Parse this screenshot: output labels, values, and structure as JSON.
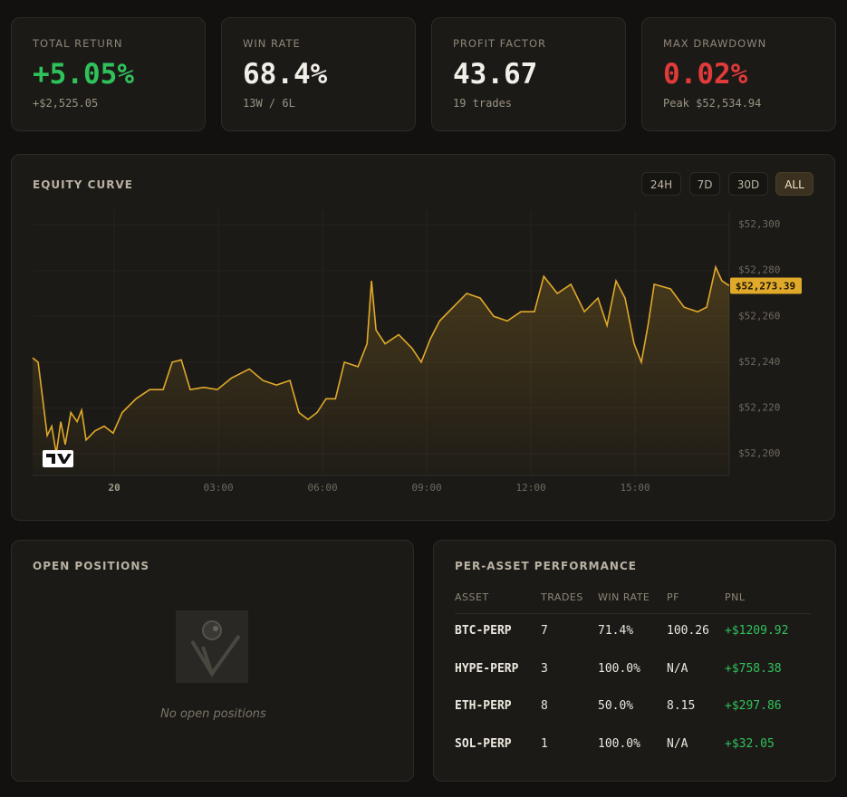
{
  "stats": [
    {
      "label": "TOTAL RETURN",
      "value": "+5.05%",
      "sub": "+$2,525.05",
      "color": "#2fc25b"
    },
    {
      "label": "WIN RATE",
      "value": "68.4%",
      "sub": "13W / 6L",
      "color": "#f2efe8"
    },
    {
      "label": "PROFIT FACTOR",
      "value": "43.67",
      "sub": "19 trades",
      "color": "#f2efe8"
    },
    {
      "label": "MAX DRAWDOWN",
      "value": "0.02%",
      "sub": "Peak $52,534.94",
      "color": "#e03a3a"
    }
  ],
  "equity_chart": {
    "title": "EQUITY CURVE",
    "ranges": [
      "24H",
      "7D",
      "30D",
      "ALL"
    ],
    "active_range": 3,
    "type": "line",
    "x": [
      -2.35,
      -2.19,
      -2.06,
      -1.93,
      -1.8,
      -1.67,
      -1.54,
      -1.41,
      -1.25,
      -1.07,
      -0.94,
      -0.81,
      -0.55,
      -0.29,
      -0.03,
      0.23,
      0.63,
      1.02,
      1.41,
      1.67,
      1.93,
      2.19,
      2.58,
      2.97,
      3.37,
      3.89,
      4.28,
      4.67,
      5.06,
      5.32,
      5.58,
      5.84,
      6.1,
      6.37,
      6.63,
      7.02,
      7.28,
      7.41,
      7.54,
      7.8,
      8.19,
      8.58,
      8.84,
      9.1,
      9.37,
      9.76,
      10.15,
      10.54,
      10.93,
      11.32,
      11.71,
      12.1,
      12.37,
      12.76,
      13.15,
      13.54,
      13.93,
      14.19,
      14.45,
      14.71,
      14.97,
      15.18,
      15.37,
      15.55,
      16.02,
      16.41,
      16.8,
      17.06,
      17.32,
      17.5,
      17.71
    ],
    "series": [
      {
        "color": "#e0a92a",
        "values": [
          52241.9,
          52240,
          52224,
          52208,
          52212,
          52200,
          52214,
          52204,
          52218,
          52214,
          52219,
          52206,
          52210,
          52212,
          52209,
          52218,
          52224,
          52228,
          52228,
          52240,
          52241,
          52228,
          52229,
          52228,
          52233,
          52237,
          52232,
          52230,
          52232,
          52218,
          52215,
          52218,
          52224,
          52224,
          52240,
          52238,
          52248,
          52275.5,
          52254,
          52248,
          52252,
          52246,
          52240,
          52250,
          52258,
          52264,
          52270,
          52268,
          52260,
          52258,
          52262,
          52262,
          52277.5,
          52270,
          52274,
          52262,
          52268,
          52256,
          52275.5,
          52268,
          52248,
          52240,
          52256,
          52274,
          52272,
          52264,
          52262,
          52264,
          52281.5,
          52275.5,
          52273.39
        ]
      }
    ],
    "xlim": [
      -2.35,
      17.71
    ],
    "xticks": [
      {
        "value": 0,
        "label": "20"
      },
      {
        "value": 3,
        "label": "03:00"
      },
      {
        "value": 6,
        "label": "06:00"
      },
      {
        "value": 9,
        "label": "09:00"
      },
      {
        "value": 12,
        "label": "12:00"
      },
      {
        "value": 15,
        "label": "15:00"
      }
    ],
    "ylim": [
      52190.5,
      52306
    ],
    "yticks": [
      {
        "value": 52200,
        "label": "$52,200"
      },
      {
        "value": 52220,
        "label": "$52,220"
      },
      {
        "value": 52240,
        "label": "$52,240"
      },
      {
        "value": 52260,
        "label": "$52,260"
      },
      {
        "value": 52280,
        "label": "$52,280"
      },
      {
        "value": 52300,
        "label": "$52,300"
      }
    ],
    "grid": true,
    "current_value": 52273.39,
    "current_label": "$52,273.39"
  },
  "open_positions": {
    "title": "OPEN POSITIONS",
    "empty_text": "No open positions"
  },
  "asset_table": {
    "title": "PER-ASSET PERFORMANCE",
    "columns": [
      "ASSET",
      "TRADES",
      "WIN RATE",
      "PF",
      "PNL"
    ],
    "rows": [
      [
        "BTC-PERP",
        "7",
        "71.4%",
        "100.26",
        "+$1209.92"
      ],
      [
        "HYPE-PERP",
        "3",
        "100.0%",
        "N/A",
        "+$758.38"
      ],
      [
        "ETH-PERP",
        "8",
        "50.0%",
        "8.15",
        "+$297.86"
      ],
      [
        "SOL-PERP",
        "1",
        "100.0%",
        "N/A",
        "+$32.05"
      ]
    ]
  }
}
